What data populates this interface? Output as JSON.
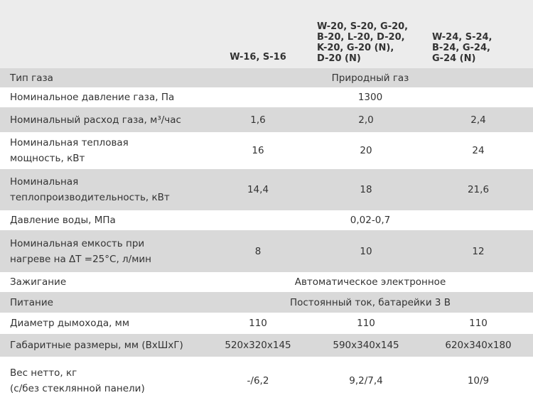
{
  "table": {
    "columns": [
      [
        "W-16, S-16"
      ],
      [
        "W-20, S-20, G-20,",
        "B-20, L-20, D-20,",
        "K-20, G-20 (N),",
        "D-20 (N)"
      ],
      [
        "W-24, S-24,",
        "B-24, G-24,",
        "G-24 (N)"
      ]
    ],
    "rows": [
      {
        "label": [
          "Тип газа"
        ],
        "cells": [
          "Природный газ"
        ]
      },
      {
        "label": [
          "Номинальное давление газа, Па"
        ],
        "cells": [
          "1300"
        ]
      },
      {
        "label": [
          "Номинальный расход газа, м³/час"
        ],
        "cells": [
          "1,6",
          "2,0",
          "2,4"
        ]
      },
      {
        "label": [
          "Номинальная тепловая",
          "мощность, кВт"
        ],
        "cells": [
          "16",
          "20",
          "24"
        ]
      },
      {
        "label": [
          "Номинальная",
          "теплопроизводительность, кВт"
        ],
        "cells": [
          "14,4",
          "18",
          "21,6"
        ]
      },
      {
        "label": [
          "Давление воды, МПа"
        ],
        "cells": [
          "0,02-0,7"
        ]
      },
      {
        "label": [
          "Номинальная емкость при",
          "нагреве на ΔT =25°C, л/мин"
        ],
        "cells": [
          "8",
          "10",
          "12"
        ]
      },
      {
        "label": [
          "Зажигание"
        ],
        "cells": [
          "Автоматическое электронное"
        ]
      },
      {
        "label": [
          "Питание"
        ],
        "cells": [
          "Постоянный ток, батарейки 3 В"
        ]
      },
      {
        "label": [
          "Диаметр дымохода, мм"
        ],
        "cells": [
          "110",
          "110",
          "110"
        ]
      },
      {
        "label": [
          "Габаритные размеры, мм (ВхШхГ)"
        ],
        "cells": [
          "520x320x145",
          "590x340x145",
          "620x340x180"
        ]
      },
      {
        "label": [
          "Вес нетто, кг",
          "(с/без стеклянной панели)"
        ],
        "cells": [
          "-/6,2",
          "9,2/7,4",
          "10/9"
        ]
      }
    ]
  }
}
